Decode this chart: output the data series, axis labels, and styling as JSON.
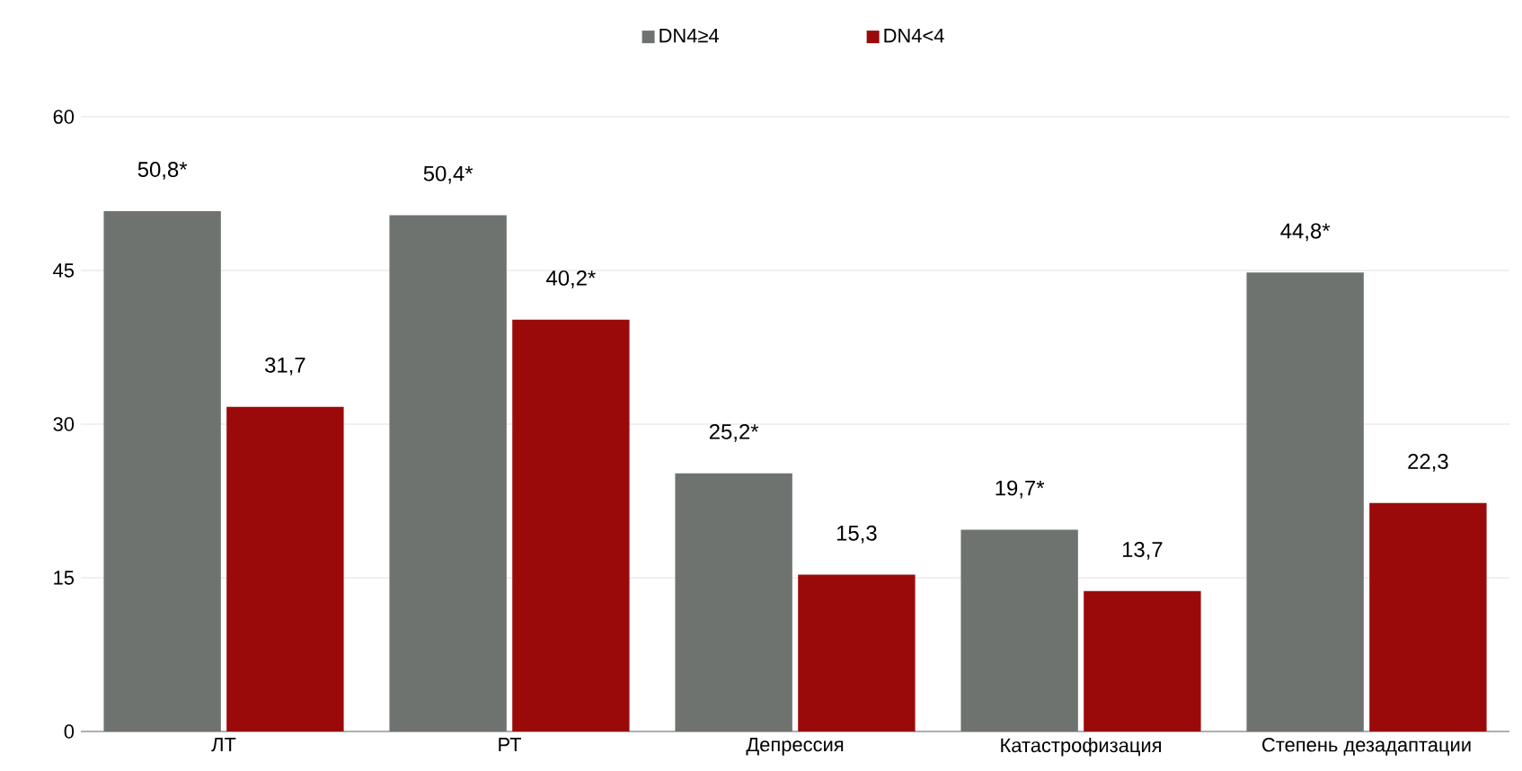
{
  "chart_data": {
    "type": "bar",
    "categories": [
      "ЛТ",
      "РТ",
      "Депрессия",
      "Катастрофизация",
      "Степень дезадаптации"
    ],
    "series": [
      {
        "name": "DN4≥4",
        "color": "#6f7370",
        "values": [
          50.8,
          50.4,
          25.2,
          19.7,
          44.8
        ],
        "value_labels": [
          "50,8*",
          "50,4*",
          "25,2*",
          "19,7*",
          "44,8*"
        ]
      },
      {
        "name": "DN4<4",
        "color": "#9b0a0a",
        "values": [
          31.7,
          40.2,
          15.3,
          13.7,
          22.3
        ],
        "value_labels": [
          "31,7",
          "40,2*",
          "15,3",
          "13,7",
          "22,3"
        ]
      }
    ],
    "ylim": [
      0,
      60
    ],
    "yticks": [
      0,
      15,
      30,
      45,
      60
    ],
    "grid": "y",
    "legend": "top"
  }
}
